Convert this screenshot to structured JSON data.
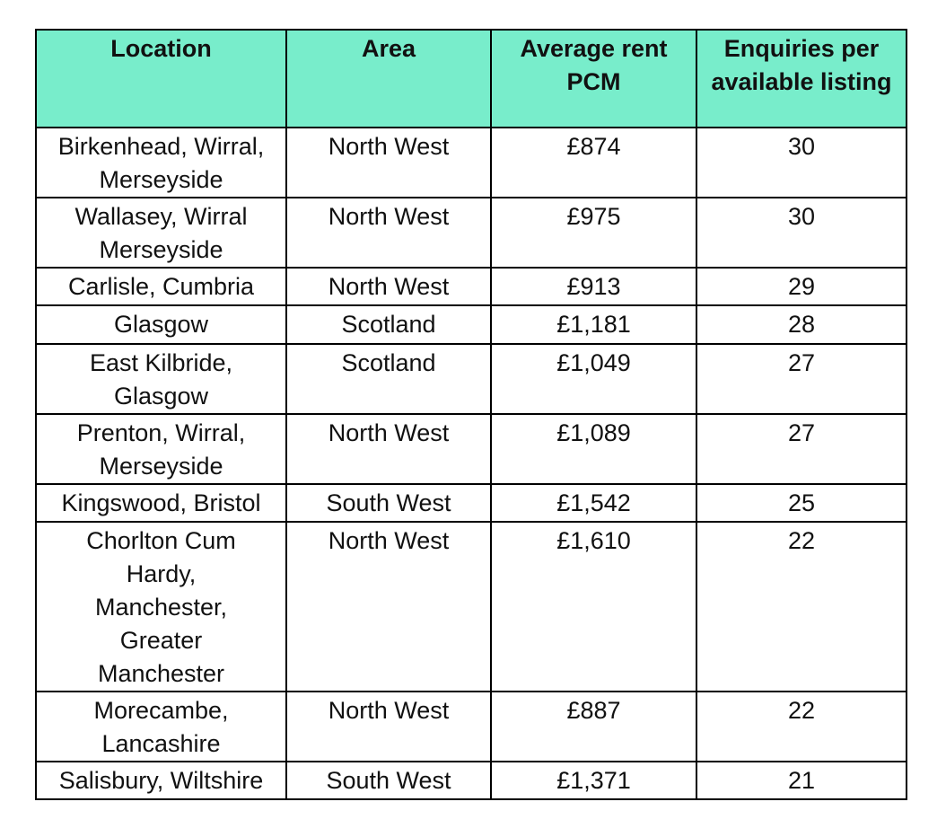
{
  "table": {
    "header": [
      "Location",
      "Area",
      "Average rent PCM",
      "Enquiries per available listing"
    ],
    "rows": [
      [
        "Birkenhead, Wirral, Merseyside",
        "North West",
        "£874",
        "30"
      ],
      [
        "Wallasey, Wirral Merseyside",
        "North West",
        "£975",
        "30"
      ],
      [
        "Carlisle, Cumbria",
        "North West",
        "£913",
        "29"
      ],
      [
        "Glasgow",
        "Scotland",
        "£1,181",
        "28"
      ],
      [
        "East Kilbride, Glasgow",
        "Scotland",
        "£1,049",
        "27"
      ],
      [
        "Prenton, Wirral, Merseyside",
        "North West",
        "£1,089",
        "27"
      ],
      [
        "Kingswood, Bristol",
        "South West",
        "£1,542",
        "25"
      ],
      [
        "Chorlton Cum Hardy, Manchester, Greater Manchester",
        "North West",
        "£1,610",
        "22"
      ],
      [
        "Morecambe, Lancashire",
        "North West",
        "£887",
        "22"
      ],
      [
        "Salisbury, Wiltshire",
        "South West",
        "£1,371",
        "21"
      ]
    ]
  }
}
